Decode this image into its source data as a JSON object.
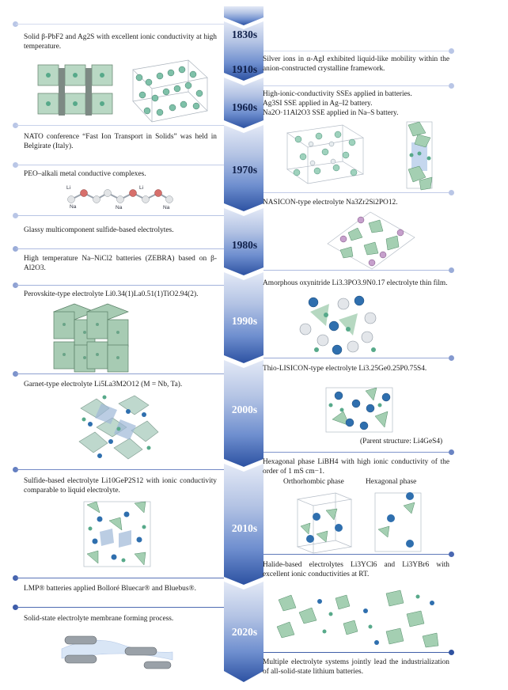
{
  "decades": [
    "1830s",
    "1910s",
    "1960s",
    "1970s",
    "1980s",
    "1990s",
    "2000s",
    "2010s",
    "2020s"
  ],
  "left_events": [
    "Solid β-PbF2 and Ag2S with excellent ionic conductivity at high temperature.",
    "NATO conference “Fast Ion Transport in Solids” was held in Belgirate (Italy).",
    "PEO–alkali metal conductive complexes.",
    "Glassy multicomponent sulfide-based electrolytes.",
    "High temperature Na–NiCl2 batteries (ZEBRA) based on β-Al2O3.",
    "Perovskite-type electrolyte Li0.34(1)La0.51(1)TiO2.94(2).",
    "Garnet-type electrolyte Li5La3M2O12 (M = Nb, Ta).",
    "Sulfide-based electrolyte Li10GeP2S12 with ionic conductivity comparable to liquid electrolyte.",
    "LMP® batteries applied Bolloré Bluecar® and Bluebus®.",
    "Solid-state electrolyte membrane forming process."
  ],
  "right_events": [
    "Silver ions in α-AgI exhibited liquid-like mobility within the anion-constructed crystalline framework.",
    "High-ionic-conductivity SSEs applied in batteries.",
    "Ag3SI SSE applied in Ag–I2 battery.",
    "Na2O·11Al2O3 SSE applied in Na–S battery.",
    "NASICON-type electrolyte Na3Zr2Si2PO12.",
    "Amorphous oxynitride Li3.3PO3.9N0.17 electrolyte thin film.",
    "Thio-LISICON-type electrolyte Li3.25Ge0.25P0.75S4.",
    "(Parent structure: Li4GeS4)",
    "Hexagonal phase LiBH4 with high ionic conductivity of the order of 1 mS cm−1.",
    "Orthorhombic phase",
    "Hexagonal phase",
    "Halide-based electrolytes Li3YCl6 and Li3YBr6 with excellent ionic conductivities at RT.",
    "Multiple electrolyte systems jointly lead the industrialization of all-solid-state lithium batteries."
  ],
  "molecule_labels": [
    "Li",
    "Na",
    "Na",
    "Li",
    "Na"
  ],
  "colors": {
    "arrow_light": "#dfe6f5",
    "arrow_dark": "#2f55a4",
    "connector": "#8d9dc6",
    "dot": "#5a74b7",
    "decade_text": "#10204a"
  }
}
